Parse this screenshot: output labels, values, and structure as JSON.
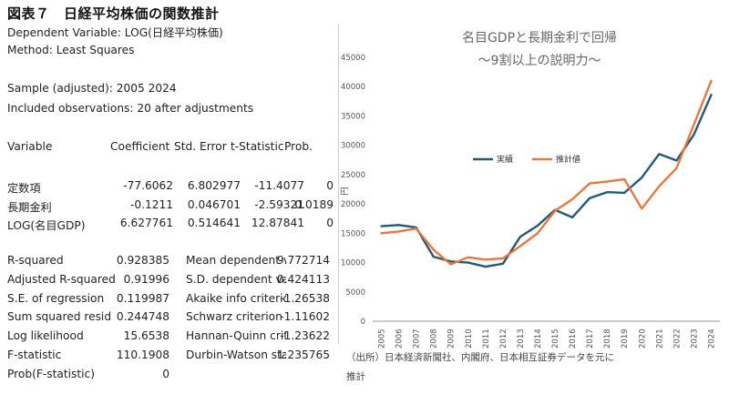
{
  "figure_title": "図表７　日経平均株価の関数推計",
  "regression": {
    "dependent": "Dependent Variable: LOG(日経平均株価)",
    "method": "Method: Least Squares",
    "sample": "Sample (adjusted): 2005 2024",
    "included": "Included observations: 20 after adjustments",
    "headers": [
      "Variable",
      "Coefficient",
      "Std. Error",
      "t-Statistic",
      "Prob."
    ],
    "rows": [
      [
        "定数項",
        "-77.6062",
        "6.802977",
        "-11.4077",
        "0"
      ],
      [
        "長期金利",
        "-0.1211",
        "0.046701",
        "-2.59321",
        "0.0189"
      ],
      [
        "LOG(名目GDP)",
        "6.627761",
        "0.514641",
        "12.87841",
        "0"
      ]
    ],
    "stats": [
      [
        "R-squared",
        "0.928385",
        "Mean dependent var",
        "9.772714"
      ],
      [
        "Adjusted R-squared",
        "0.91996",
        "S.D. dependent var",
        "0.424113"
      ],
      [
        "S.E. of regression",
        "0.119987",
        "Akaike info criterion",
        "-1.26538"
      ],
      [
        "Sum squared resid",
        "0.244748",
        "Schwarz criterion",
        "-1.11602"
      ],
      [
        "Log likelihood",
        "15.6538",
        "Hannan-Quinn criter.",
        "-1.23622"
      ],
      [
        "F-statistic",
        "110.1908",
        "Durbin-Watson stat",
        "1.235765"
      ],
      [
        "Prob(F-statistic)",
        "0",
        "",
        ""
      ]
    ]
  },
  "chart_data": {
    "type": "line",
    "title": "名目GDPと長期金利で回帰",
    "subtitle": "〜9割以上の説明力〜",
    "ylabel": "円",
    "ylim": [
      0,
      45000
    ],
    "yticks": [
      0,
      5000,
      10000,
      15000,
      20000,
      25000,
      30000,
      35000,
      40000,
      45000
    ],
    "x": [
      "2005",
      "2006",
      "2007",
      "2008",
      "2009",
      "2010",
      "2011",
      "2012",
      "2013",
      "2014",
      "2015",
      "2016",
      "2017",
      "2018",
      "2019",
      "2020",
      "2021",
      "2022",
      "2023",
      "2024"
    ],
    "legend_position": "upper-middle",
    "grid": false,
    "series": [
      {
        "name": "実績",
        "color": "#1f5a7a",
        "values": [
          16200,
          16400,
          16000,
          11000,
          10200,
          10000,
          9300,
          9800,
          14400,
          16300,
          19000,
          17700,
          21000,
          22000,
          21900,
          24500,
          28500,
          27400,
          31800,
          38600
        ]
      },
      {
        "name": "推計値",
        "color": "#e8783a",
        "values": [
          15000,
          15300,
          15800,
          12200,
          9700,
          10900,
          10500,
          10700,
          12800,
          15000,
          18800,
          20800,
          23500,
          23800,
          24200,
          19200,
          23000,
          26100,
          33500,
          41000
        ]
      }
    ],
    "source": "（出所）日本経済新聞社、内閣府、日本相互証券データを元に推計"
  },
  "colors": {
    "axis": "#9a9a9a",
    "title": "#666666",
    "tick": "#555555"
  }
}
